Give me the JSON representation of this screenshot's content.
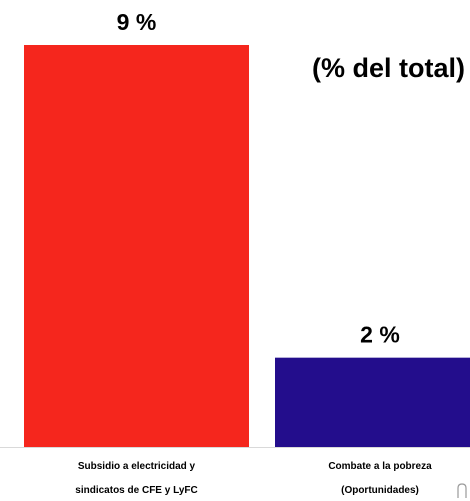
{
  "chart_data": {
    "type": "bar",
    "title": "",
    "subtitle": "(% del total)",
    "xlabel": "",
    "ylabel": "",
    "ylim": [
      0,
      9
    ],
    "grid": false,
    "categories": [
      [
        "Subsidio a electricidad y",
        "sindicatos de CFE y LyFC"
      ],
      [
        "Combate a la pobreza",
        "(Oportunidades)"
      ]
    ],
    "values": [
      9,
      2
    ],
    "value_labels": [
      "9 %",
      "2 %"
    ],
    "colors": [
      "#f5261d",
      "#230d8c"
    ]
  }
}
